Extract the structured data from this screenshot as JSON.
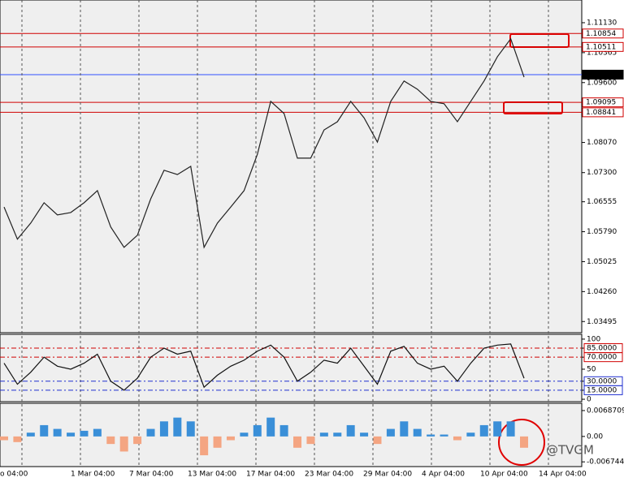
{
  "chart_data": [
    {
      "type": "line",
      "color": "#222222",
      "values": [
        1.0642,
        1.056,
        1.0601,
        1.0653,
        1.0622,
        1.0628,
        1.0653,
        1.0684,
        1.0591,
        1.0539,
        1.057,
        1.0663,
        1.0736,
        1.0725,
        1.0746,
        1.0539,
        1.0601,
        1.0642,
        1.0684,
        1.0777,
        1.0912,
        1.0881,
        1.0767,
        1.0767,
        1.0839,
        1.086,
        1.0912,
        1.087,
        1.0808,
        1.0912,
        1.0964,
        1.0943,
        1.0912,
        1.0906,
        1.086,
        1.0912,
        1.0964,
        1.1026,
        1.1072,
        1.0974
      ],
      "ylim": [
        1.0321,
        1.1171
      ],
      "yticks": [
        {
          "value": 1.1113,
          "label": "1.11130"
        },
        {
          "value": 1.10365,
          "label": "1.10365"
        },
        {
          "value": 1.096,
          "label": "1.09600"
        },
        {
          "value": 1.0807,
          "label": "1.08070"
        },
        {
          "value": 1.073,
          "label": "1.07300"
        },
        {
          "value": 1.06555,
          "label": "1.06555"
        },
        {
          "value": 1.0579,
          "label": "1.05790"
        },
        {
          "value": 1.05025,
          "label": "1.05025"
        },
        {
          "value": 1.0426,
          "label": "1.04260"
        },
        {
          "value": 1.03495,
          "label": "1.03495"
        }
      ],
      "levels": [
        {
          "value": 1.10854,
          "label": "1.10854",
          "color": "#d00000"
        },
        {
          "value": 1.10511,
          "label": "1.10511",
          "color": "#d00000"
        },
        {
          "value": 1.09803,
          "label": "1.09803",
          "color": "#3050ff"
        },
        {
          "value": 1.09095,
          "label": "1.09095",
          "color": "#d00000"
        },
        {
          "value": 1.08841,
          "label": "1.08841",
          "color": "#d00000"
        }
      ],
      "x_tick_labels": [
        "o 04:00",
        "1 Mar 04:00",
        "7 Mar 04:00",
        "13 Mar 04:00",
        "17 Mar 04:00",
        "23 Mar 04:00",
        "29 Mar 04:00",
        "4 Apr 04:00",
        "10 Apr 04:00",
        "14 Apr 04:00"
      ]
    },
    {
      "type": "line",
      "color": "#111111",
      "values": [
        60,
        25,
        45,
        70,
        55,
        50,
        60,
        75,
        30,
        15,
        35,
        70,
        85,
        75,
        80,
        20,
        40,
        55,
        65,
        80,
        90,
        70,
        30,
        45,
        65,
        60,
        85,
        55,
        25,
        80,
        88,
        60,
        50,
        55,
        30,
        60,
        85,
        90,
        92,
        35
      ],
      "ylim": [
        -4,
        108
      ],
      "yticks": [
        100,
        {
          "value": 85,
          "label": "85.0000",
          "color": "#d00000"
        },
        {
          "value": 70,
          "label": "70.0000",
          "color": "#d00000"
        },
        50,
        {
          "value": 30,
          "label": "30.0000",
          "color": "#2030d0"
        },
        {
          "value": 15,
          "label": "15.0000",
          "color": "#2030d0"
        },
        0
      ]
    },
    {
      "type": "bar",
      "color": "#3a8fd8",
      "negative_color": "#f4a582",
      "values": [
        -0.001,
        -0.0015,
        0.001,
        0.003,
        0.002,
        0.001,
        0.0015,
        0.002,
        -0.002,
        -0.004,
        -0.002,
        0.002,
        0.004,
        0.005,
        0.004,
        -0.005,
        -0.003,
        -0.001,
        0.001,
        0.003,
        0.005,
        0.003,
        -0.003,
        -0.002,
        0.001,
        0.001,
        0.003,
        0.001,
        -0.002,
        0.002,
        0.004,
        0.002,
        0.0005,
        0.0005,
        -0.001,
        0.001,
        0.003,
        0.004,
        0.004,
        -0.003
      ],
      "ylim": [
        -0.008,
        0.0088
      ],
      "yticks": [
        0.0068709,
        {
          "value": 0,
          "label": "0.00"
        },
        -0.0067446
      ]
    }
  ],
  "watermark": "@TVGM"
}
